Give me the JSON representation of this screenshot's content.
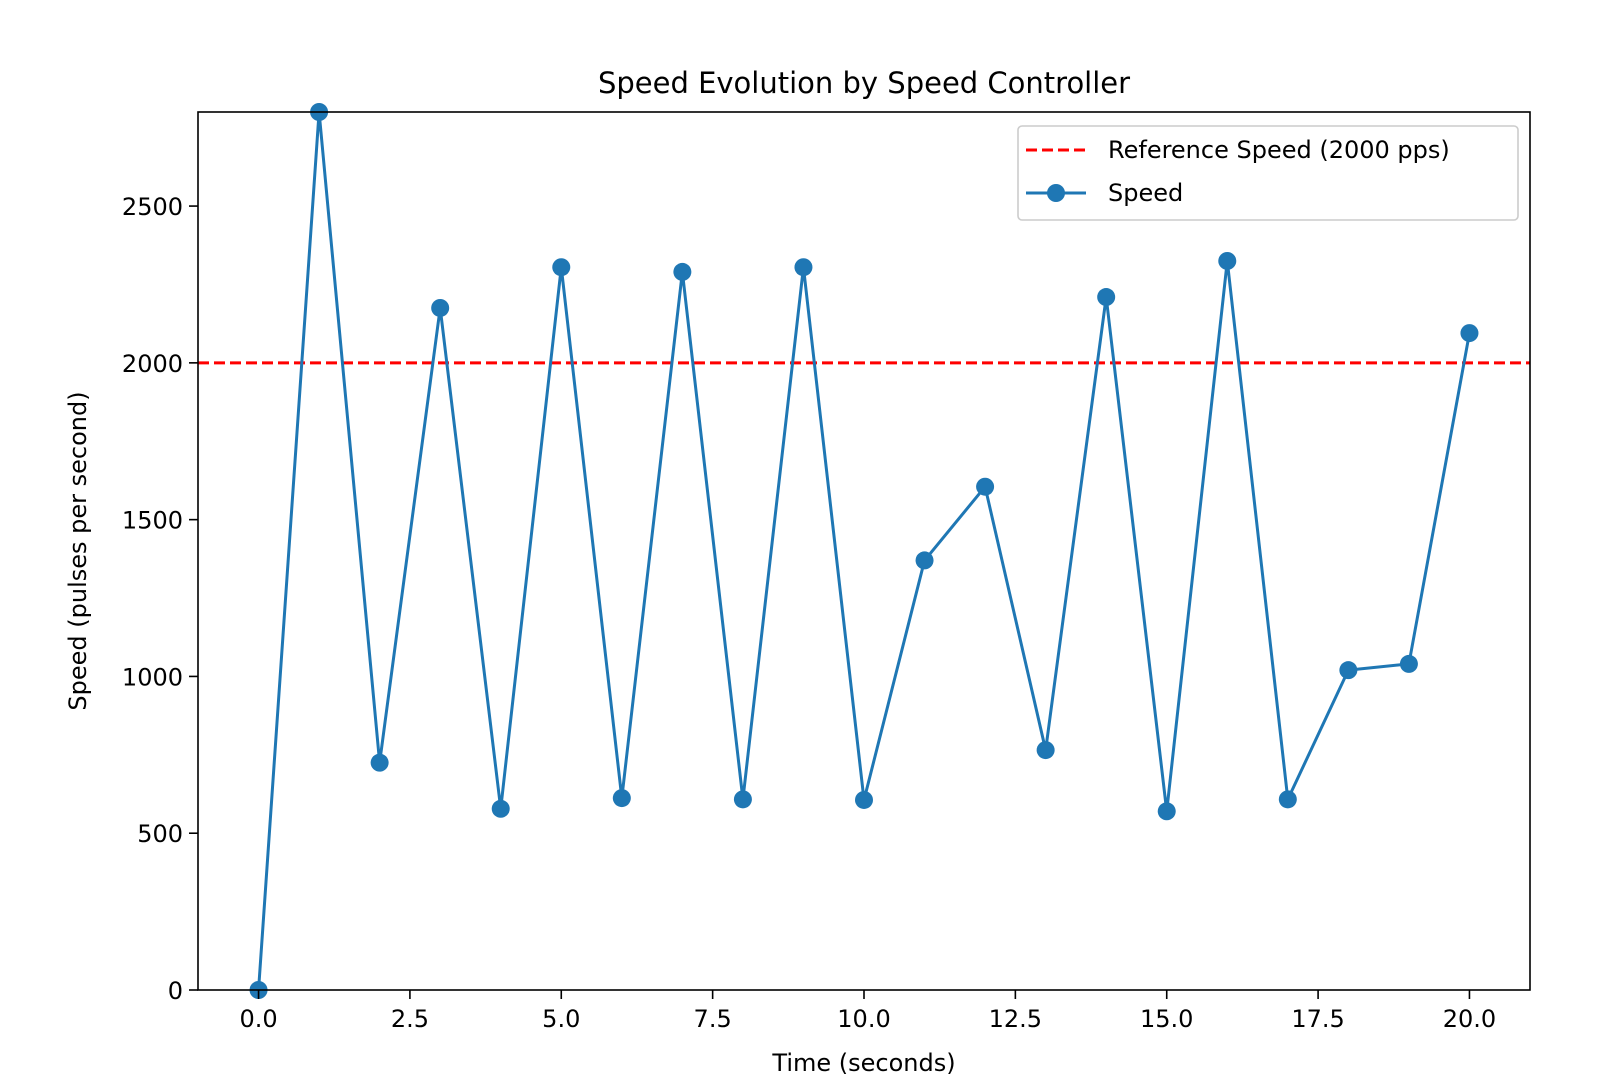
{
  "chart_data": {
    "type": "line",
    "title": "Speed Evolution by Speed Controller",
    "xlabel": "Time (seconds)",
    "ylabel": "Speed (pulses per second)",
    "xlim": [
      -1,
      21
    ],
    "ylim": [
      0,
      2800
    ],
    "xticks": [
      0.0,
      2.5,
      5.0,
      7.5,
      10.0,
      12.5,
      15.0,
      17.5,
      20.0
    ],
    "xtick_labels": [
      "0.0",
      "2.5",
      "5.0",
      "7.5",
      "10.0",
      "12.5",
      "15.0",
      "17.5",
      "20.0"
    ],
    "yticks": [
      0,
      500,
      1000,
      1500,
      2000,
      2500
    ],
    "ytick_labels": [
      "0",
      "500",
      "1000",
      "1500",
      "2000",
      "2500"
    ],
    "grid": false,
    "legend_position": "top-right",
    "reference": {
      "name": "Reference Speed (2000 pps)",
      "value": 2000,
      "color": "#ff0000",
      "style": "dashed"
    },
    "series": [
      {
        "name": "Speed",
        "color": "#1f77b4",
        "marker": "circle",
        "x": [
          0,
          1,
          2,
          3,
          4,
          5,
          6,
          7,
          8,
          9,
          10,
          11,
          12,
          13,
          14,
          15,
          16,
          17,
          18,
          19,
          20
        ],
        "y": [
          0,
          2800,
          725,
          2175,
          578,
          2305,
          612,
          2290,
          608,
          2305,
          606,
          1370,
          1605,
          765,
          2210,
          570,
          2325,
          608,
          1020,
          1040,
          2095
        ]
      }
    ]
  }
}
